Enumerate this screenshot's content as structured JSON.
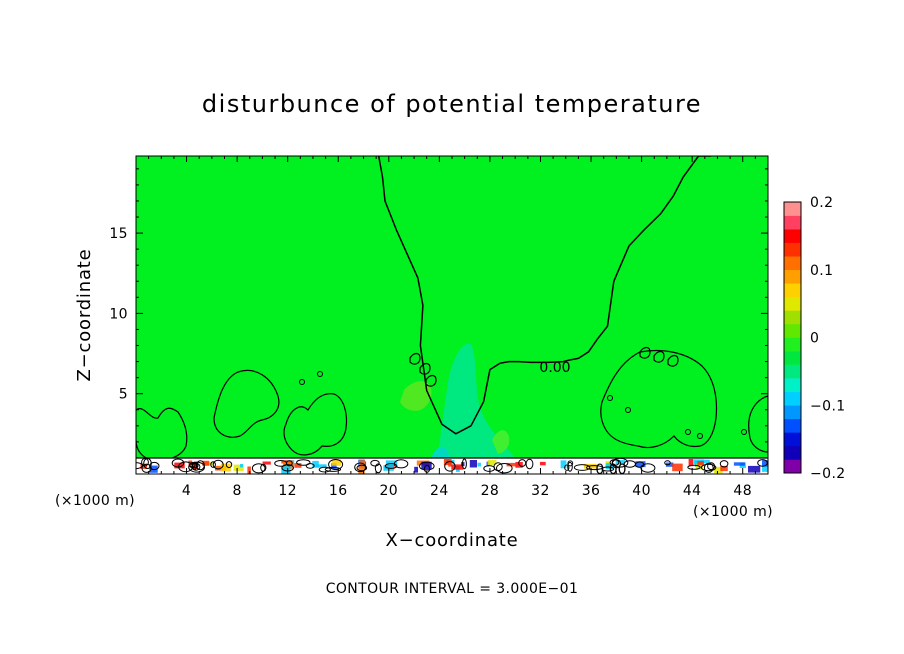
{
  "chart_data": {
    "type": "heatmap",
    "title": "disturbunce of potential temperature",
    "xlabel": "X−coordinate",
    "ylabel": "Z−coordinate",
    "x_unit_label": "(×1000 m)",
    "x_ticks": [
      "4",
      "8",
      "12",
      "16",
      "20",
      "24",
      "28",
      "32",
      "36",
      "40",
      "44",
      "48"
    ],
    "x_tick_values": [
      4,
      8,
      12,
      16,
      20,
      24,
      28,
      32,
      36,
      40,
      44,
      48
    ],
    "xlim": [
      0,
      50
    ],
    "y_ticks": [
      "5",
      "10",
      "15"
    ],
    "y_tick_values": [
      5,
      10,
      15
    ],
    "ylim": [
      0,
      19.8
    ],
    "colorbar": {
      "labels": [
        "0.2",
        "0.1",
        "0",
        "−0.1",
        "−0.2"
      ],
      "values": [
        0.2,
        0.1,
        0,
        -0.1,
        -0.2
      ],
      "range": [
        -0.2,
        0.2
      ],
      "colors": [
        "#7f00a8",
        "#1000b8",
        "#0010d8",
        "#0050ff",
        "#0098ff",
        "#00d0ff",
        "#00f0c8",
        "#00e880",
        "#00e840",
        "#20f020",
        "#60e800",
        "#a0e000",
        "#e0e800",
        "#ffd000",
        "#ffa000",
        "#ff7000",
        "#ff3000",
        "#ff0000",
        "#ff4060",
        "#ff9090"
      ]
    },
    "background_color": "#00f020",
    "contour_label": "0.00",
    "contour_label_secondary": "0.00",
    "footer": "CONTOUR INTERVAL = 3.000E−01",
    "series": [
      {
        "name": "0.00",
        "x": [
          19.2,
          19.5,
          19.7,
          20.6,
          22.3,
          22.7,
          22.5,
          23.0,
          24.2,
          25.3,
          26.5,
          27.5,
          28.0,
          28.8,
          29.5,
          30.3,
          31.2,
          32.6,
          33.8,
          34.3,
          35.0,
          35.8,
          36.5,
          37.3,
          37.8,
          39.0,
          40.2,
          41.5,
          42.5,
          43.3,
          44.5,
          45.5
        ],
        "y": [
          19.8,
          18.5,
          17.0,
          15.2,
          12.2,
          10.5,
          8.0,
          5.2,
          3.1,
          2.5,
          3.0,
          4.5,
          6.5,
          6.9,
          7.0,
          7.0,
          6.95,
          6.95,
          7.0,
          7.1,
          7.2,
          7.6,
          8.4,
          9.2,
          12.0,
          14.2,
          15.2,
          16.2,
          17.3,
          18.5,
          19.8,
          19.8
        ]
      }
    ]
  }
}
